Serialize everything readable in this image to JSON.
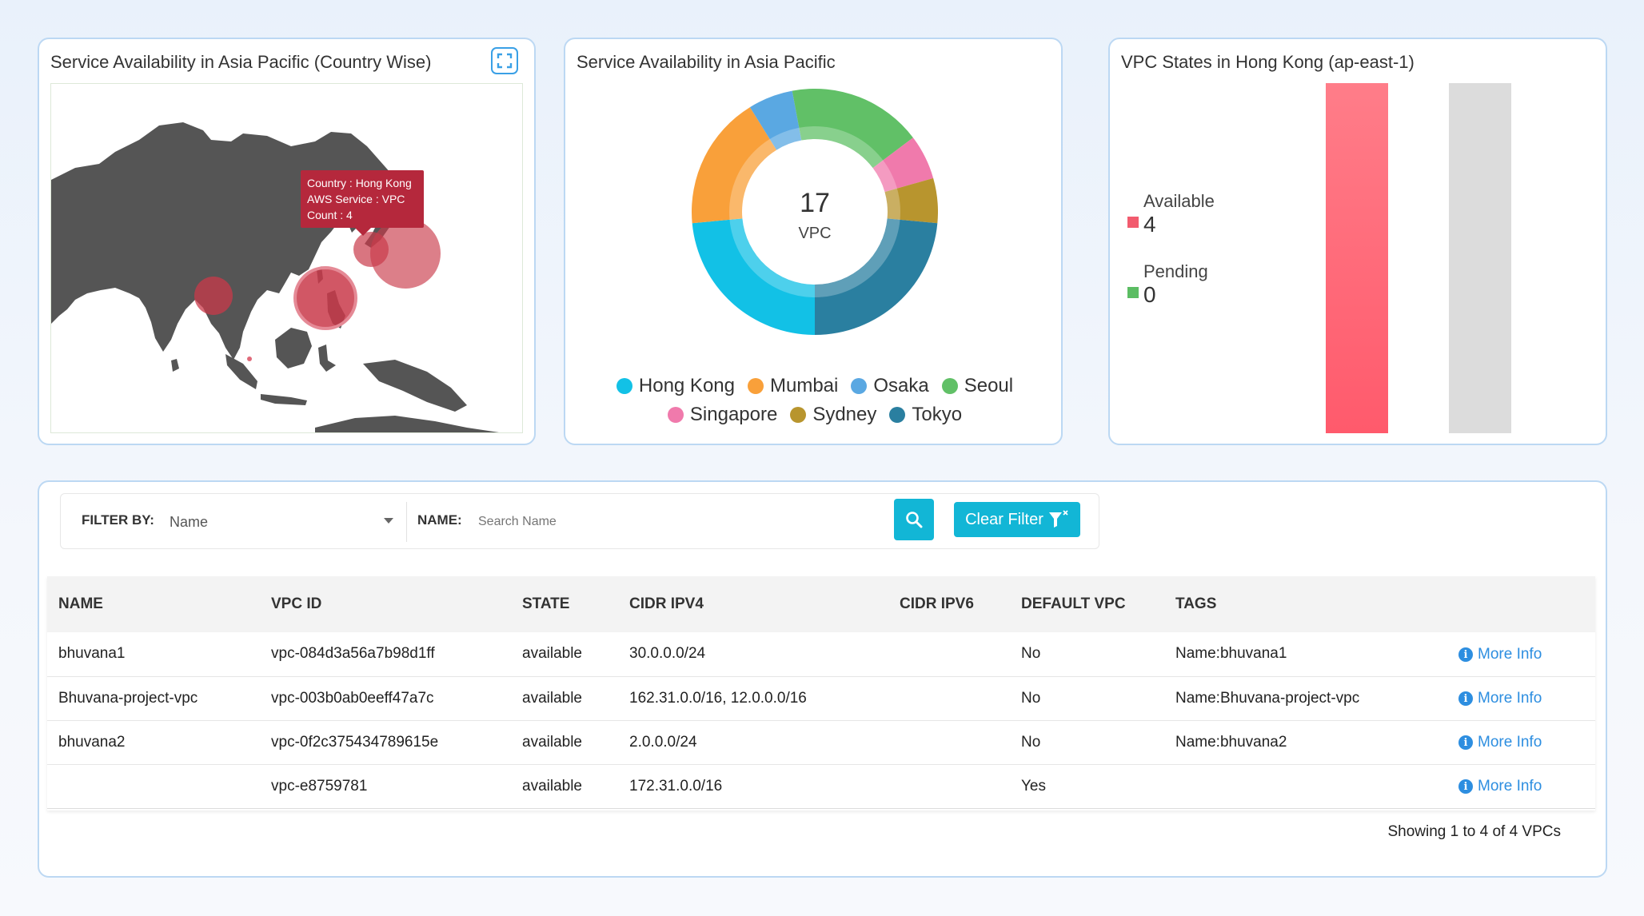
{
  "map_panel": {
    "title": "Service Availability in Asia Pacific (Country Wise)",
    "expand_icon": "expand-icon",
    "tooltip": {
      "line1": "Country : Hong Kong",
      "line2": "AWS Service : VPC",
      "line3": "Count : 4"
    },
    "bubble_color": "#c93a4a",
    "land_color": "#555555"
  },
  "donut_panel": {
    "title": "Service Availability in Asia Pacific",
    "center_value": "17",
    "center_label": "VPC",
    "chart_data": {
      "type": "pie",
      "categories": [
        "Hong Kong",
        "Mumbai",
        "Osaka",
        "Seoul",
        "Singapore",
        "Sydney",
        "Tokyo"
      ],
      "values": [
        4,
        3,
        1,
        3,
        1,
        1,
        4
      ],
      "colors": [
        "#12c1e6",
        "#f9a03a",
        "#5aa8e2",
        "#61c067",
        "#f07aac",
        "#b8952e",
        "#2a7fa0"
      ]
    }
  },
  "states_panel": {
    "title": "VPC States in Hong Kong (ap-east-1)",
    "items": [
      {
        "label": "Available",
        "value": "4",
        "color": "#f25b6e"
      },
      {
        "label": "Pending",
        "value": "0",
        "color": "#5bbd63"
      }
    ],
    "chart_data": {
      "type": "bar",
      "categories": [
        "Available",
        "Pending"
      ],
      "values": [
        4,
        0
      ]
    }
  },
  "filter": {
    "filter_by_label": "FILTER BY:",
    "filter_by_value": "Name",
    "name_label": "NAME:",
    "search_placeholder": "Search Name",
    "search_icon": "search-icon",
    "clear_label": "Clear Filter",
    "clear_icon": "filter-clear-icon"
  },
  "table": {
    "headers": [
      "NAME",
      "VPC ID",
      "STATE",
      "CIDR IPV4",
      "CIDR IPV6",
      "DEFAULT VPC",
      "TAGS",
      ""
    ],
    "rows": [
      {
        "name": "bhuvana1",
        "vpc_id": "vpc-084d3a56a7b98d1ff",
        "state": "available",
        "cidr_ipv4": "30.0.0.0/24",
        "cidr_ipv6": "",
        "default_vpc": "No",
        "tags": "Name:bhuvana1",
        "action": "More Info"
      },
      {
        "name": "Bhuvana-project-vpc",
        "vpc_id": "vpc-003b0ab0eeff47a7c",
        "state": "available",
        "cidr_ipv4": "162.31.0.0/16, 12.0.0.0/16",
        "cidr_ipv6": "",
        "default_vpc": "No",
        "tags": "Name:Bhuvana-project-vpc",
        "action": "More Info"
      },
      {
        "name": "bhuvana2",
        "vpc_id": "vpc-0f2c375434789615e",
        "state": "available",
        "cidr_ipv4": "2.0.0.0/24",
        "cidr_ipv6": "",
        "default_vpc": "No",
        "tags": "Name:bhuvana2",
        "action": "More Info"
      },
      {
        "name": "",
        "vpc_id": "vpc-e8759781",
        "state": "available",
        "cidr_ipv4": "172.31.0.0/16",
        "cidr_ipv6": "",
        "default_vpc": "Yes",
        "tags": "",
        "action": "More Info"
      }
    ],
    "summary": "Showing 1 to 4 of 4 VPCs"
  }
}
